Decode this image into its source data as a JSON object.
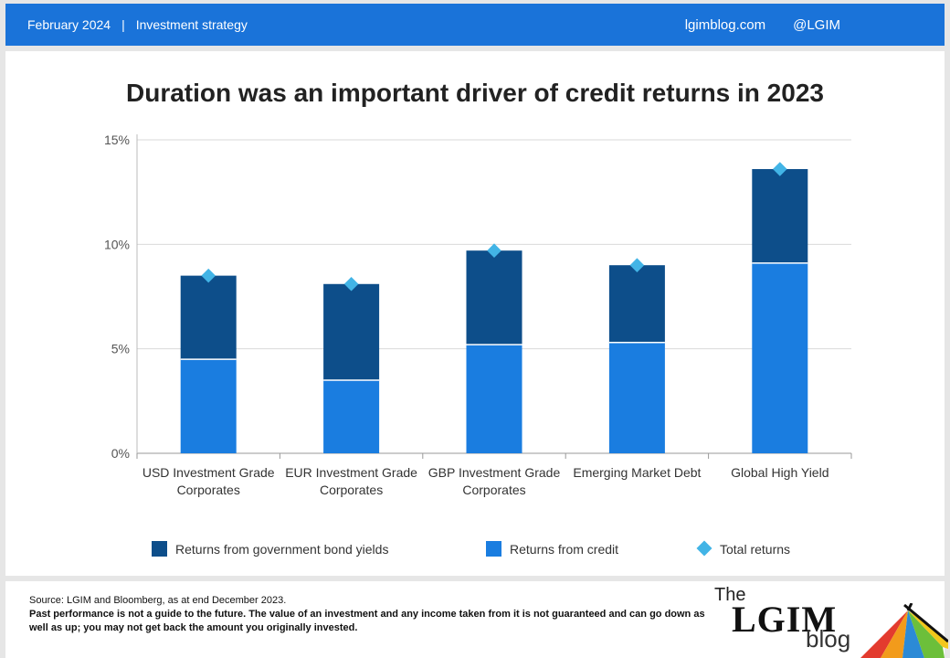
{
  "header": {
    "date": "February 2024",
    "separator": "|",
    "section": "Investment strategy",
    "website": "lgimblog.com",
    "handle": "@LGIM"
  },
  "chart_data": {
    "type": "bar",
    "stacked": true,
    "title": "Duration was an important driver of credit returns in 2023",
    "categories": [
      [
        "USD Investment Grade",
        "Corporates"
      ],
      [
        "EUR Investment Grade",
        "Corporates"
      ],
      [
        "GBP Investment Grade",
        "Corporates"
      ],
      [
        "Emerging Market Debt"
      ],
      [
        "Global High Yield"
      ]
    ],
    "series": [
      {
        "name": "Returns from credit",
        "values": [
          4.5,
          3.5,
          5.2,
          5.3,
          9.1
        ],
        "color": "#1a7de0"
      },
      {
        "name": "Returns from government bond yields",
        "values": [
          4.0,
          4.6,
          4.5,
          3.7,
          4.5
        ],
        "color": "#0d4e8a"
      }
    ],
    "markers": {
      "name": "Total returns",
      "values": [
        8.5,
        8.1,
        9.7,
        9.0,
        13.6
      ],
      "color": "#42b4e6"
    },
    "yticks": [
      "0%",
      "5%",
      "10%",
      "15%"
    ],
    "ylim": [
      0,
      15
    ],
    "grid": true,
    "legend_position": "bottom"
  },
  "legend": [
    {
      "label": "Returns from government bond yields",
      "color": "#0d4e8a",
      "shape": "square"
    },
    {
      "label": "Returns from credit",
      "color": "#1a7de0",
      "shape": "square"
    },
    {
      "label": "Total returns",
      "color": "#42b4e6",
      "shape": "diamond"
    }
  ],
  "footer": {
    "source": "Source: LGIM and Bloomberg, as at end December 2023.",
    "disclaimer": "Past performance is not a guide to the future. The value of an investment and any income taken from it is not guaranteed and can go down as well as up; you may not get back the amount you originally invested."
  },
  "logo": {
    "the": "The",
    "name": "LGIM",
    "blog": "blog"
  }
}
